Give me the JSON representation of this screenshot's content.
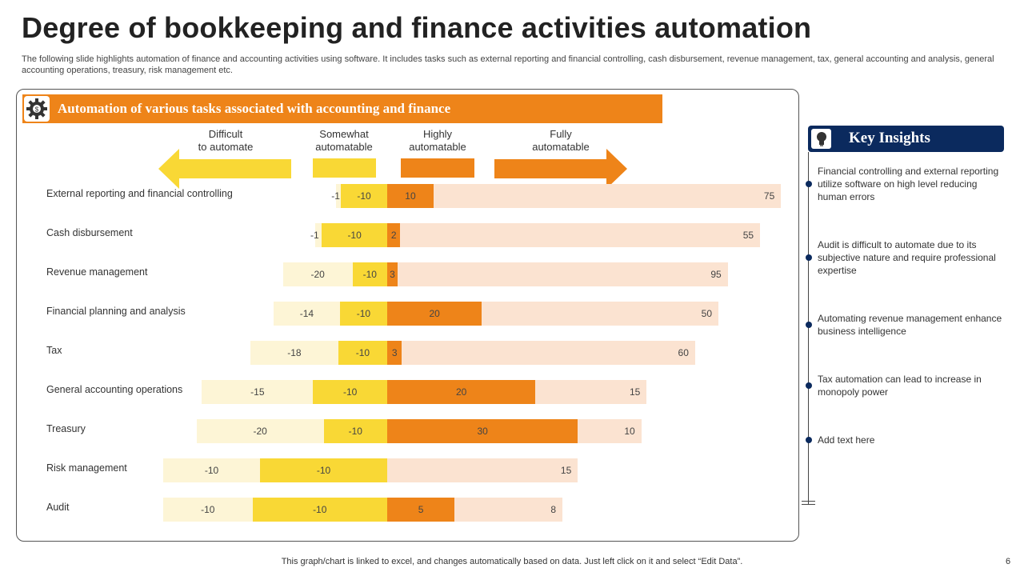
{
  "title": "Degree of bookkeeping and finance activities automation",
  "subtitle": "The following slide highlights automation of finance and accounting activities using software. It includes tasks such as external reporting and financial controlling, cash disbursement, revenue management, tax, general accounting and analysis, general accounting operations, treasury, risk management etc.",
  "panel_title": "Automation of various tasks associated with accounting and finance",
  "colors": {
    "difficult": "#FDF5D6",
    "somewhat": "#F9D835",
    "highly": "#EE8419",
    "fully": "#FBE3D1",
    "header": "#EE8419",
    "insights": "#0B2A5E"
  },
  "chart_data": {
    "type": "bar",
    "stacked": "100%-diverging",
    "categories": [
      "External reporting  and financial controlling",
      "Cash disbursement",
      "Revenue  management",
      "Financial planning and analysis",
      "Tax",
      "General  accounting operations",
      "Treasury",
      "Risk management",
      "Audit"
    ],
    "series": [
      {
        "name": "Difficult to automate",
        "values": [
          -1,
          -1,
          -20,
          -14,
          -18,
          -15,
          -20,
          -10,
          -10
        ]
      },
      {
        "name": "Somewhat automatable",
        "values": [
          -10,
          -10,
          -10,
          -10,
          -10,
          -10,
          -10,
          -10,
          -10
        ]
      },
      {
        "name": "Highly automatable",
        "values": [
          10,
          2,
          3,
          20,
          3,
          20,
          30,
          null,
          5
        ]
      },
      {
        "name": "Fully automatable",
        "values": [
          75,
          55,
          95,
          50,
          60,
          15,
          10,
          15,
          8
        ]
      }
    ],
    "legend": {
      "difficult": "Difficult\nto automate",
      "somewhat": "Somewhat\nautomatable",
      "highly": "Highly\nautomatable",
      "fully": "Fully\nautomatable"
    }
  },
  "insights": {
    "title": "Key Insights",
    "items": [
      "Financial controlling and external reporting utilize software on high level reducing human errors",
      "Audit is difficult to automate due to its subjective nature and require professional expertise",
      "Automating revenue  management enhance business intelligence",
      "Tax automation can lead to increase in monopoly power",
      "Add text here"
    ]
  },
  "footer": "This graph/chart is linked to excel,  and changes automatically based on data. Just left click on it and select “Edit Data”.",
  "page_number": "6"
}
